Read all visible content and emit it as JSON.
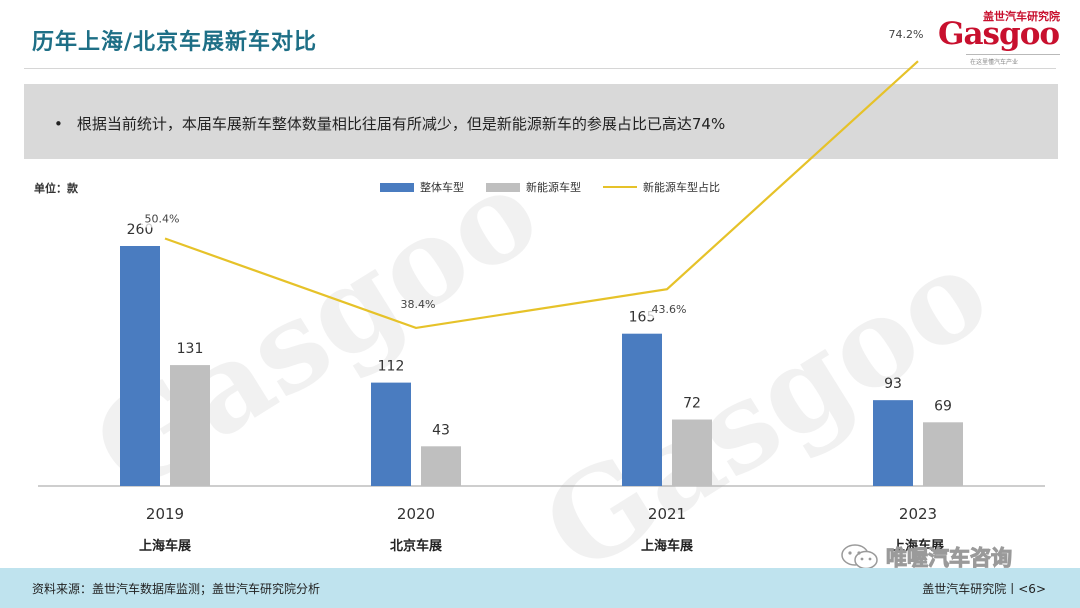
{
  "header": {
    "title": "历年上海/北京车展新车对比",
    "logo_cn": "盖世汽车研究院",
    "logo_en": "Gasgoo",
    "logo_sub": "在这里懂汽车产业"
  },
  "note": {
    "bullet": "•",
    "text": "根据当前统计，本届车展新车整体数量相比往届有所减少，但是新能源新车的参展占比已高达74%"
  },
  "chart_data": {
    "type": "bar",
    "unit_label": "单位：款",
    "categories": [
      "2019",
      "2020",
      "2021",
      "2023"
    ],
    "subcategories": [
      "上海车展",
      "北京车展",
      "上海车展",
      "上海车展"
    ],
    "series": [
      {
        "name": "整体车型",
        "type": "bar",
        "color": "#4a7cc0",
        "values": [
          260,
          112,
          165,
          93
        ]
      },
      {
        "name": "新能源车型",
        "type": "bar",
        "color": "#bfbfbf",
        "values": [
          131,
          43,
          72,
          69
        ]
      },
      {
        "name": "新能源车型占比",
        "type": "line",
        "color": "#e6c229",
        "values": [
          50.4,
          38.4,
          43.6,
          74.2
        ],
        "labels": [
          "50.4%",
          "38.4%",
          "43.6%",
          "74.2%"
        ]
      }
    ],
    "ylim": [
      0,
      260
    ],
    "ylim_secondary": [
      0,
      80
    ],
    "legend_position": "top-center",
    "grid": false
  },
  "footer": {
    "source": "资料来源：盖世汽车数据库监测；盖世汽车研究院分析",
    "right": "盖世汽车研究院丨<6>"
  },
  "wechat": {
    "text": "唯喔汽车咨询"
  },
  "watermark": {
    "text": "Gasgoo"
  }
}
